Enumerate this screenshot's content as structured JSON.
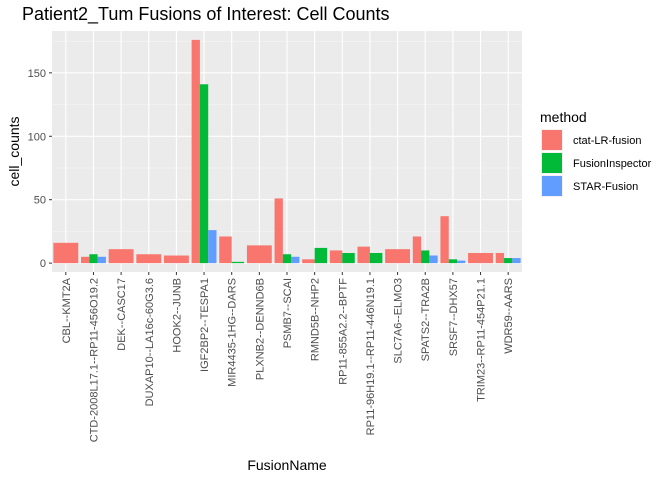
{
  "chart_data": {
    "type": "bar",
    "title": "Patient2_Tum Fusions of Interest: Cell Counts",
    "xlabel": "FusionName",
    "ylabel": "cell_counts",
    "ylim": [
      -7,
      183
    ],
    "yticks": [
      0,
      50,
      100,
      150
    ],
    "grid": true,
    "legend_position": "right",
    "legend_title": "method",
    "categories": [
      "CBL--KMT2A",
      "CTD-2008L17.1--RP11-456O19.2",
      "DEK--CASC17",
      "DUXAP10--LA16c-60G3.6",
      "HOOK2--JUNB",
      "IGF2BP2--TESPA1",
      "MIR4435-1HG--DARS",
      "PLXNB2--DENND6B",
      "PSMB7--SCAI",
      "RMND5B--NHP2",
      "RP11-855A2.2--BPTF",
      "RP11-96H19.1--RP11-446N19.1",
      "SLC7A6--ELMO3",
      "SPATS2--TRA2B",
      "SRSF7--DHX57",
      "TRIM23--RP11-454P21.1",
      "WDR59--AARS"
    ],
    "series": [
      {
        "name": "ctat-LR-fusion",
        "color": "#F8766D",
        "values": [
          16,
          5,
          11,
          7,
          6,
          176,
          21,
          14,
          51,
          3,
          10,
          13,
          11,
          21,
          37,
          8,
          8
        ]
      },
      {
        "name": "FusionInspector",
        "color": "#00BA38",
        "values": [
          null,
          7,
          null,
          null,
          null,
          141,
          1,
          null,
          7,
          12,
          8,
          8,
          null,
          10,
          3,
          null,
          4
        ]
      },
      {
        "name": "STAR-Fusion",
        "color": "#619CFF",
        "values": [
          null,
          5,
          null,
          null,
          null,
          26,
          null,
          null,
          5,
          null,
          null,
          null,
          null,
          6,
          2,
          null,
          4
        ]
      }
    ]
  }
}
